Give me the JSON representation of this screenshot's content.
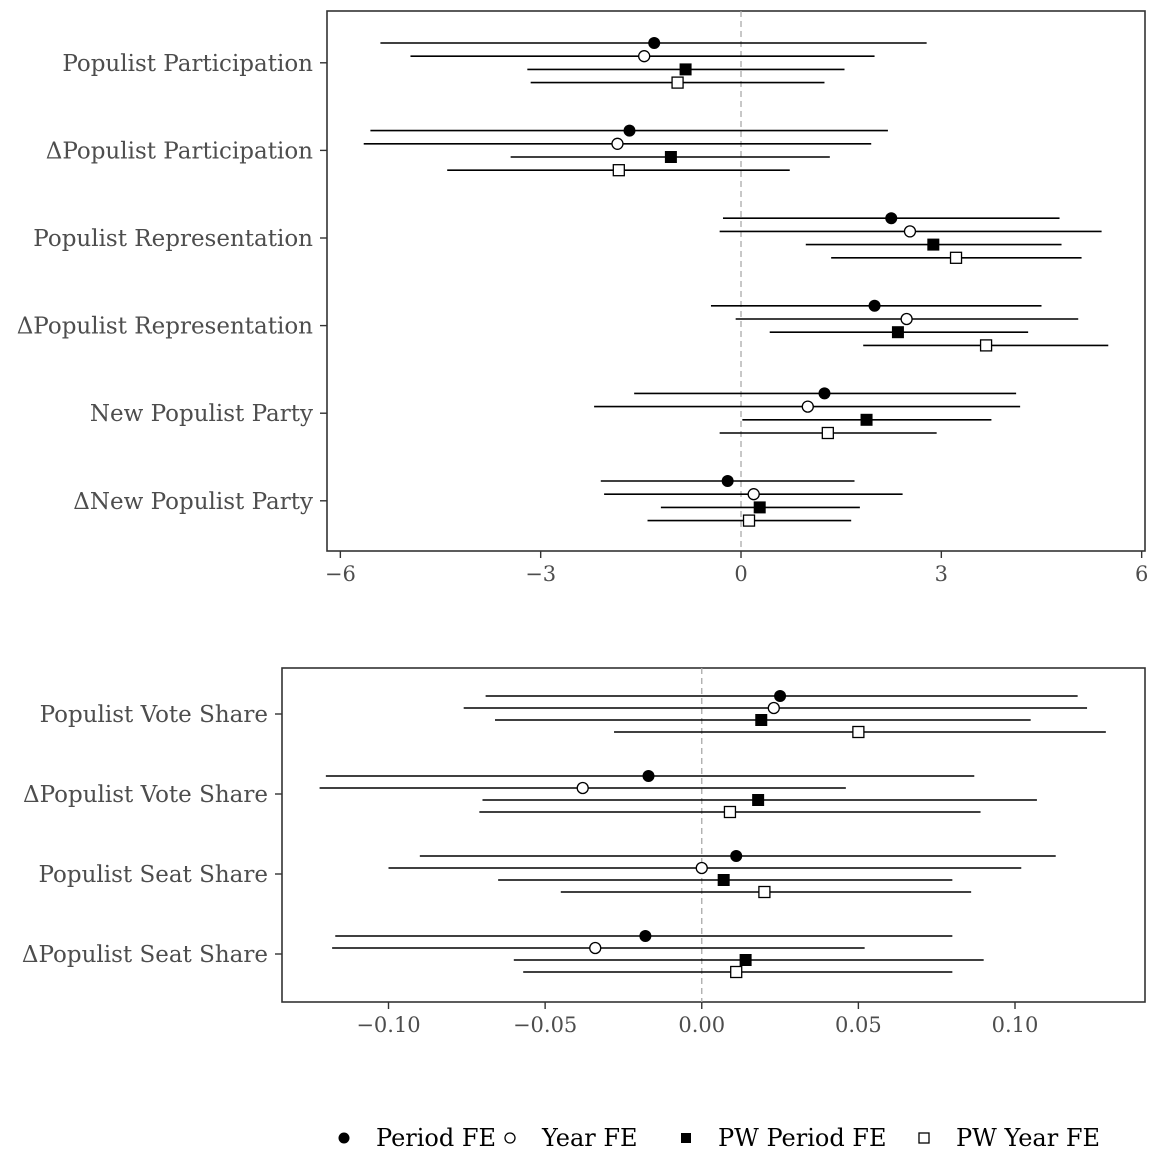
{
  "chart_data": [
    {
      "type": "scatter",
      "subtype": "coefficient-plot",
      "categories": [
        "Populist Participation",
        "ΔPopulist Participation",
        "Populist Representation",
        "ΔPopulist Representation",
        "New Populist Party",
        "ΔNew Populist Party"
      ],
      "x_ticks": [
        "−6",
        "−3",
        "0",
        "3",
        "6"
      ],
      "xlim": [
        -6.2,
        6.05
      ],
      "reference_line": 0,
      "series": [
        {
          "name": "Period FE",
          "marker": "filled-circle",
          "estimates": [
            -1.3,
            -1.67,
            2.25,
            2.0,
            1.25,
            -0.2
          ],
          "ci_low": [
            -5.4,
            -5.55,
            -0.27,
            -0.45,
            -1.6,
            -2.1
          ],
          "ci_high": [
            2.78,
            2.2,
            4.77,
            4.5,
            4.12,
            1.7
          ]
        },
        {
          "name": "Year FE",
          "marker": "open-circle",
          "estimates": [
            -1.45,
            -1.85,
            2.53,
            2.48,
            1.0,
            0.19
          ],
          "ci_low": [
            -4.95,
            -5.65,
            -0.32,
            -0.08,
            -2.2,
            -2.05
          ],
          "ci_high": [
            2.0,
            1.95,
            5.4,
            5.05,
            4.18,
            2.42
          ]
        },
        {
          "name": "PW Period FE",
          "marker": "filled-square",
          "estimates": [
            -0.83,
            -1.05,
            2.88,
            2.35,
            1.88,
            0.28
          ],
          "ci_low": [
            -3.2,
            -3.45,
            0.97,
            0.43,
            0.02,
            -1.2
          ],
          "ci_high": [
            1.55,
            1.33,
            4.8,
            4.3,
            3.75,
            1.78
          ]
        },
        {
          "name": "PW Year FE",
          "marker": "open-square",
          "estimates": [
            -0.95,
            -1.83,
            3.22,
            3.67,
            1.3,
            0.12
          ],
          "ci_low": [
            -3.15,
            -4.4,
            1.35,
            1.83,
            -0.32,
            -1.4
          ],
          "ci_high": [
            1.25,
            0.73,
            5.1,
            5.5,
            2.93,
            1.65
          ]
        }
      ]
    },
    {
      "type": "scatter",
      "subtype": "coefficient-plot",
      "categories": [
        "Populist Vote Share",
        "ΔPopulist Vote Share",
        "Populist Seat Share",
        "ΔPopulist Seat Share"
      ],
      "x_ticks": [
        "−0.10",
        "−0.05",
        "0.00",
        "0.05",
        "0.10"
      ],
      "xlim": [
        -0.134,
        0.1415
      ],
      "reference_line": 0,
      "series": [
        {
          "name": "Period FE",
          "marker": "filled-circle",
          "estimates": [
            0.025,
            -0.017,
            0.011,
            -0.018
          ],
          "ci_low": [
            -0.069,
            -0.12,
            -0.09,
            -0.117
          ],
          "ci_high": [
            0.12,
            0.087,
            0.113,
            0.08
          ]
        },
        {
          "name": "Year FE",
          "marker": "open-circle",
          "estimates": [
            0.023,
            -0.038,
            0.0,
            -0.034
          ],
          "ci_low": [
            -0.076,
            -0.122,
            -0.1,
            -0.118
          ],
          "ci_high": [
            0.123,
            0.046,
            0.102,
            0.052
          ]
        },
        {
          "name": "PW Period FE",
          "marker": "filled-square",
          "estimates": [
            0.019,
            0.018,
            0.007,
            0.014
          ],
          "ci_low": [
            -0.066,
            -0.07,
            -0.065,
            -0.06
          ],
          "ci_high": [
            0.105,
            0.107,
            0.08,
            0.09
          ]
        },
        {
          "name": "PW Year FE",
          "marker": "open-square",
          "estimates": [
            0.05,
            0.009,
            0.02,
            0.011
          ],
          "ci_low": [
            -0.028,
            -0.071,
            -0.045,
            -0.057
          ],
          "ci_high": [
            0.129,
            0.089,
            0.086,
            0.08
          ]
        }
      ]
    }
  ],
  "legend": {
    "position": "bottom",
    "items": [
      {
        "label": "Period FE",
        "marker": "filled-circle"
      },
      {
        "label": "Year FE",
        "marker": "open-circle"
      },
      {
        "label": "PW Period FE",
        "marker": "filled-square"
      },
      {
        "label": "PW Year FE",
        "marker": "open-square"
      }
    ]
  },
  "colors": {
    "line": "#000000",
    "axis_text": "#4d4d4d",
    "reference_line": "#aaaaaa",
    "panel_border": "#333333"
  }
}
